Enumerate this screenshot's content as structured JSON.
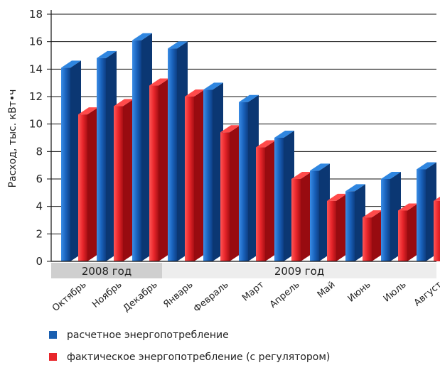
{
  "chart_data": {
    "type": "bar",
    "ylabel": "Расход, тыс. кВт•ч",
    "ylim": [
      0,
      18
    ],
    "ytick_step": 2,
    "grid": "horizontal",
    "categories": [
      "Октябрь",
      "Ноябрь",
      "Декабрь",
      "Январь",
      "Февраль",
      "Март",
      "Апрель",
      "Май",
      "Июнь",
      "Июль",
      "Август"
    ],
    "year_groups": [
      {
        "label": "2008 год",
        "start": 0,
        "end": 2
      },
      {
        "label": "2009 год",
        "start": 3,
        "end": 10
      }
    ],
    "series": [
      {
        "name": "расчетное энергопотребление",
        "color": "#1a5fb0",
        "values": [
          14.1,
          14.8,
          16.1,
          15.5,
          12.5,
          11.6,
          9.0,
          6.6,
          5.1,
          6.0,
          6.7
        ]
      },
      {
        "name": "фактическое энергопотребление (с регулятором)",
        "color": "#e8262b",
        "values": [
          10.7,
          11.3,
          12.8,
          12.0,
          9.4,
          8.3,
          6.0,
          4.4,
          3.2,
          3.7,
          4.4
        ]
      }
    ],
    "legend_position": "bottom"
  }
}
